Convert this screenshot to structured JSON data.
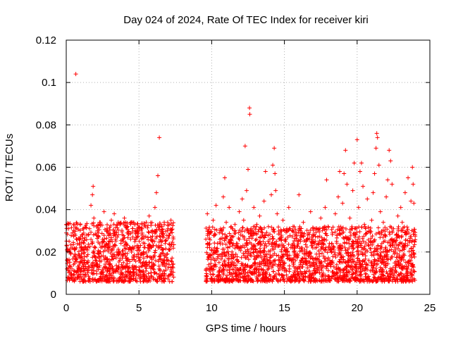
{
  "chart_data": {
    "type": "scatter",
    "title": "Day 024 of 2024, Rate Of TEC Index for receiver kiri",
    "xlabel": "GPS time / hours",
    "ylabel": "ROTI / TECUs",
    "xlim": [
      0,
      25
    ],
    "ylim": [
      0,
      0.12
    ],
    "x_ticks": [
      0,
      5,
      10,
      15,
      20,
      25
    ],
    "x_tick_labels": [
      "0",
      "5",
      "10",
      "15",
      "20",
      "25"
    ],
    "y_ticks": [
      0,
      0.02,
      0.04,
      0.06,
      0.08,
      0.1,
      0.12
    ],
    "y_tick_labels": [
      "0",
      "0.02",
      "0.04",
      "0.06",
      "0.08",
      "0.1",
      "0.12"
    ],
    "grid": true,
    "marker": "plus",
    "color": "#ff0000",
    "data_gap_hours": [
      7.4,
      9.6
    ],
    "series": [
      {
        "name": "ROTI",
        "points": [
          [
            0.0,
            0.033
          ],
          [
            0.0,
            0.029
          ],
          [
            0.05,
            0.021
          ],
          [
            0.05,
            0.012
          ],
          [
            0.1,
            0.016
          ],
          [
            0.1,
            0.008
          ],
          [
            0.15,
            0.031
          ],
          [
            0.2,
            0.025
          ],
          [
            0.25,
            0.011
          ],
          [
            0.3,
            0.009
          ],
          [
            0.4,
            0.022
          ],
          [
            0.5,
            0.014
          ],
          [
            0.6,
            0.019
          ],
          [
            0.66,
            0.104
          ],
          [
            0.7,
            0.026
          ],
          [
            0.8,
            0.013
          ],
          [
            0.9,
            0.024
          ],
          [
            1.0,
            0.011
          ],
          [
            1.1,
            0.017
          ],
          [
            1.2,
            0.021
          ],
          [
            1.3,
            0.009
          ],
          [
            1.4,
            0.028
          ],
          [
            1.5,
            0.015
          ],
          [
            1.6,
            0.031
          ],
          [
            1.7,
            0.042
          ],
          [
            1.8,
            0.047
          ],
          [
            1.85,
            0.051
          ],
          [
            1.9,
            0.036
          ],
          [
            2.0,
            0.022
          ],
          [
            2.1,
            0.013
          ],
          [
            2.2,
            0.029
          ],
          [
            2.3,
            0.034
          ],
          [
            2.4,
            0.018
          ],
          [
            2.5,
            0.026
          ],
          [
            2.6,
            0.039
          ],
          [
            2.7,
            0.012
          ],
          [
            2.8,
            0.031
          ],
          [
            2.9,
            0.024
          ],
          [
            3.0,
            0.016
          ],
          [
            3.1,
            0.035
          ],
          [
            3.2,
            0.021
          ],
          [
            3.3,
            0.038
          ],
          [
            3.4,
            0.011
          ],
          [
            3.5,
            0.027
          ],
          [
            3.6,
            0.019
          ],
          [
            3.7,
            0.033
          ],
          [
            3.8,
            0.014
          ],
          [
            3.9,
            0.025
          ],
          [
            4.0,
            0.036
          ],
          [
            4.1,
            0.017
          ],
          [
            4.2,
            0.029
          ],
          [
            4.3,
            0.012
          ],
          [
            4.4,
            0.022
          ],
          [
            4.5,
            0.034
          ],
          [
            4.6,
            0.018
          ],
          [
            4.7,
            0.026
          ],
          [
            4.8,
            0.013
          ],
          [
            4.9,
            0.031
          ],
          [
            5.0,
            0.021
          ],
          [
            5.1,
            0.015
          ],
          [
            5.2,
            0.028
          ],
          [
            5.3,
            0.011
          ],
          [
            5.4,
            0.024
          ],
          [
            5.5,
            0.034
          ],
          [
            5.6,
            0.018
          ],
          [
            5.7,
            0.037
          ],
          [
            5.8,
            0.027
          ],
          [
            5.9,
            0.013
          ],
          [
            6.0,
            0.023
          ],
          [
            6.1,
            0.041
          ],
          [
            6.2,
            0.048
          ],
          [
            6.3,
            0.056
          ],
          [
            6.4,
            0.074
          ],
          [
            6.45,
            0.033
          ],
          [
            6.5,
            0.019
          ],
          [
            6.6,
            0.029
          ],
          [
            6.7,
            0.011
          ],
          [
            6.8,
            0.024
          ],
          [
            6.9,
            0.016
          ],
          [
            7.0,
            0.031
          ],
          [
            7.1,
            0.021
          ],
          [
            7.2,
            0.035
          ],
          [
            7.3,
            0.013
          ],
          [
            7.35,
            0.027
          ],
          [
            9.6,
            0.026
          ],
          [
            9.7,
            0.038
          ],
          [
            9.8,
            0.014
          ],
          [
            9.9,
            0.029
          ],
          [
            10.0,
            0.021
          ],
          [
            10.1,
            0.035
          ],
          [
            10.2,
            0.016
          ],
          [
            10.3,
            0.042
          ],
          [
            10.4,
            0.024
          ],
          [
            10.5,
            0.011
          ],
          [
            10.6,
            0.031
          ],
          [
            10.7,
            0.019
          ],
          [
            10.8,
            0.046
          ],
          [
            10.9,
            0.055
          ],
          [
            11.0,
            0.034
          ],
          [
            11.1,
            0.022
          ],
          [
            11.2,
            0.041
          ],
          [
            11.3,
            0.013
          ],
          [
            11.4,
            0.027
          ],
          [
            11.5,
            0.018
          ],
          [
            11.6,
            0.033
          ],
          [
            11.7,
            0.024
          ],
          [
            11.8,
            0.012
          ],
          [
            11.9,
            0.039
          ],
          [
            12.0,
            0.028
          ],
          [
            12.1,
            0.045
          ],
          [
            12.2,
            0.035
          ],
          [
            12.3,
            0.07
          ],
          [
            12.4,
            0.049
          ],
          [
            12.5,
            0.059
          ],
          [
            12.6,
            0.088
          ],
          [
            12.62,
            0.085
          ],
          [
            12.7,
            0.031
          ],
          [
            12.8,
            0.022
          ],
          [
            12.9,
            0.041
          ],
          [
            13.0,
            0.015
          ],
          [
            13.1,
            0.033
          ],
          [
            13.2,
            0.024
          ],
          [
            13.3,
            0.037
          ],
          [
            13.4,
            0.012
          ],
          [
            13.5,
            0.028
          ],
          [
            13.6,
            0.044
          ],
          [
            13.7,
            0.058
          ],
          [
            13.8,
            0.019
          ],
          [
            13.9,
            0.032
          ],
          [
            14.0,
            0.026
          ],
          [
            14.1,
            0.047
          ],
          [
            14.2,
            0.061
          ],
          [
            14.3,
            0.069
          ],
          [
            14.35,
            0.057
          ],
          [
            14.4,
            0.049
          ],
          [
            14.5,
            0.038
          ],
          [
            14.6,
            0.014
          ],
          [
            14.7,
            0.029
          ],
          [
            14.8,
            0.021
          ],
          [
            14.9,
            0.035
          ],
          [
            15.0,
            0.012
          ],
          [
            15.1,
            0.026
          ],
          [
            15.2,
            0.018
          ],
          [
            15.3,
            0.041
          ],
          [
            15.4,
            0.031
          ],
          [
            15.5,
            0.016
          ],
          [
            15.6,
            0.024
          ],
          [
            15.7,
            0.011
          ],
          [
            15.8,
            0.029
          ],
          [
            15.9,
            0.019
          ],
          [
            16.0,
            0.047
          ],
          [
            16.1,
            0.025
          ],
          [
            16.2,
            0.013
          ],
          [
            16.3,
            0.034
          ],
          [
            16.4,
            0.021
          ],
          [
            16.5,
            0.016
          ],
          [
            16.6,
            0.028
          ],
          [
            16.7,
            0.011
          ],
          [
            16.8,
            0.039
          ],
          [
            16.9,
            0.023
          ],
          [
            17.0,
            0.014
          ],
          [
            17.1,
            0.031
          ],
          [
            17.2,
            0.019
          ],
          [
            17.3,
            0.027
          ],
          [
            17.4,
            0.013
          ],
          [
            17.5,
            0.036
          ],
          [
            17.6,
            0.022
          ],
          [
            17.7,
            0.018
          ],
          [
            17.8,
            0.041
          ],
          [
            17.9,
            0.054
          ],
          [
            18.0,
            0.032
          ],
          [
            18.1,
            0.024
          ],
          [
            18.2,
            0.015
          ],
          [
            18.3,
            0.029
          ],
          [
            18.4,
            0.021
          ],
          [
            18.5,
            0.038
          ],
          [
            18.6,
            0.014
          ],
          [
            18.7,
            0.046
          ],
          [
            18.8,
            0.058
          ],
          [
            18.9,
            0.031
          ],
          [
            19.0,
            0.043
          ],
          [
            19.1,
            0.057
          ],
          [
            19.2,
            0.068
          ],
          [
            19.3,
            0.052
          ],
          [
            19.4,
            0.026
          ],
          [
            19.5,
            0.036
          ],
          [
            19.6,
            0.018
          ],
          [
            19.7,
            0.049
          ],
          [
            19.8,
            0.062
          ],
          [
            19.9,
            0.028
          ],
          [
            20.0,
            0.073
          ],
          [
            20.1,
            0.041
          ],
          [
            20.2,
            0.058
          ],
          [
            20.3,
            0.062
          ],
          [
            20.4,
            0.051
          ],
          [
            20.5,
            0.033
          ],
          [
            20.6,
            0.021
          ],
          [
            20.7,
            0.045
          ],
          [
            20.8,
            0.016
          ],
          [
            20.9,
            0.029
          ],
          [
            21.0,
            0.035
          ],
          [
            21.1,
            0.048
          ],
          [
            21.2,
            0.057
          ],
          [
            21.3,
            0.069
          ],
          [
            21.35,
            0.076
          ],
          [
            21.4,
            0.074
          ],
          [
            21.5,
            0.061
          ],
          [
            21.6,
            0.039
          ],
          [
            21.7,
            0.024
          ],
          [
            21.8,
            0.034
          ],
          [
            21.9,
            0.018
          ],
          [
            22.0,
            0.046
          ],
          [
            22.1,
            0.054
          ],
          [
            22.2,
            0.068
          ],
          [
            22.3,
            0.063
          ],
          [
            22.4,
            0.052
          ],
          [
            22.5,
            0.031
          ],
          [
            22.6,
            0.022
          ],
          [
            22.7,
            0.014
          ],
          [
            22.8,
            0.037
          ],
          [
            22.9,
            0.027
          ],
          [
            23.0,
            0.041
          ],
          [
            23.1,
            0.034
          ],
          [
            23.2,
            0.019
          ],
          [
            23.3,
            0.048
          ],
          [
            23.4,
            0.029
          ],
          [
            23.5,
            0.055
          ],
          [
            23.6,
            0.016
          ],
          [
            23.7,
            0.044
          ],
          [
            23.8,
            0.06
          ],
          [
            23.85,
            0.052
          ],
          [
            23.9,
            0.043
          ],
          [
            23.95,
            0.025
          ]
        ]
      }
    ],
    "dense_band": {
      "description_segments": [
        {
          "x_range": [
            0.0,
            7.4
          ],
          "y_range": [
            0.002,
            0.03
          ]
        },
        {
          "x_range": [
            9.6,
            24.0
          ],
          "y_range": [
            0.002,
            0.028
          ]
        }
      ]
    }
  }
}
